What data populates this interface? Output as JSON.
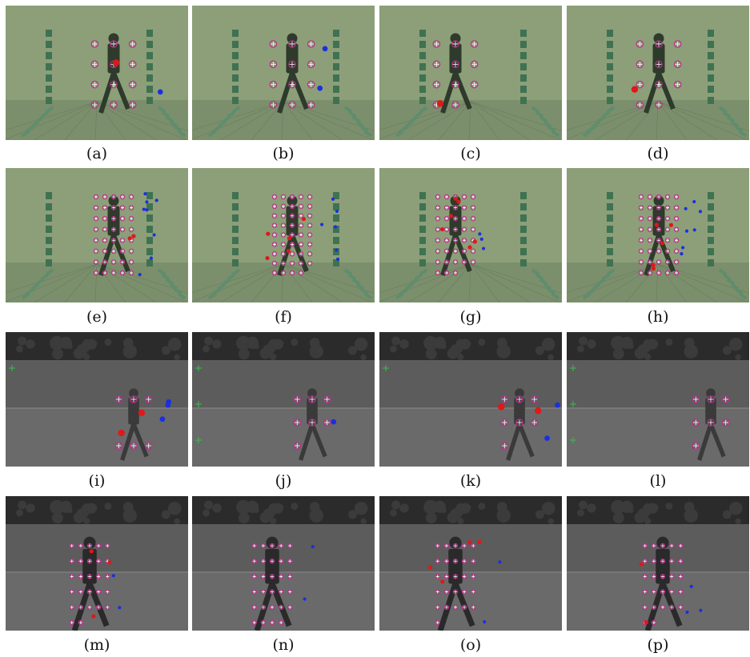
{
  "panels": [
    {
      "label": "(a)",
      "scene": "indoor",
      "subject": "walker-right",
      "markers": {
        "matched": 12,
        "missed": 1,
        "false": 1
      }
    },
    {
      "label": "(b)",
      "scene": "indoor",
      "subject": "walker-right",
      "markers": {
        "matched": 12,
        "missed": 0,
        "false": 2
      }
    },
    {
      "label": "(c)",
      "scene": "indoor",
      "subject": "walker-right",
      "markers": {
        "matched": 11,
        "missed": 1,
        "false": 0
      }
    },
    {
      "label": "(d)",
      "scene": "indoor",
      "subject": "walker-right",
      "markers": {
        "matched": 11,
        "missed": 1,
        "false": 0
      }
    },
    {
      "label": "(e)",
      "scene": "indoor",
      "subject": "walker-right",
      "markers": {
        "matched": 40,
        "missed": 2,
        "false": 8
      }
    },
    {
      "label": "(f)",
      "scene": "indoor",
      "subject": "walker-right",
      "markers": {
        "matched": 44,
        "missed": 5,
        "false": 6
      }
    },
    {
      "label": "(g)",
      "scene": "indoor",
      "subject": "walker-right",
      "markers": {
        "matched": 38,
        "missed": 6,
        "false": 3
      }
    },
    {
      "label": "(h)",
      "scene": "indoor",
      "subject": "walker-right",
      "markers": {
        "matched": 40,
        "missed": 5,
        "false": 7
      }
    },
    {
      "label": "(i)",
      "scene": "thermal",
      "subject": "walker-small",
      "markers": {
        "matched": 6,
        "missed": 2,
        "false": 3,
        "green": 1
      }
    },
    {
      "label": "(j)",
      "scene": "thermal",
      "subject": "walker-small",
      "markers": {
        "matched": 7,
        "missed": 0,
        "false": 1,
        "green": 3
      }
    },
    {
      "label": "(k)",
      "scene": "thermal",
      "subject": "walker-small",
      "markers": {
        "matched": 7,
        "missed": 2,
        "false": 2,
        "green": 1
      }
    },
    {
      "label": "(l)",
      "scene": "thermal",
      "subject": "walker-small",
      "markers": {
        "matched": 7,
        "missed": 0,
        "false": 0,
        "green": 3
      }
    },
    {
      "label": "(m)",
      "scene": "thermal",
      "subject": "walker-large",
      "markers": {
        "matched": 27,
        "missed": 3,
        "false": 2
      }
    },
    {
      "label": "(n)",
      "scene": "thermal",
      "subject": "walker-large",
      "markers": {
        "matched": 29,
        "missed": 0,
        "false": 2
      }
    },
    {
      "label": "(o)",
      "scene": "thermal",
      "subject": "walker-large",
      "markers": {
        "matched": 26,
        "missed": 4,
        "false": 2
      }
    },
    {
      "label": "(p)",
      "scene": "thermal",
      "subject": "walker-large",
      "markers": {
        "matched": 27,
        "missed": 2,
        "false": 3
      }
    }
  ],
  "colors": {
    "indoor_bg": "#8c9f79",
    "indoor_floor": "#7b8f6c",
    "indoor_pillar": "#3f7251",
    "thermal_sky": "#2b2b2b",
    "thermal_wall": "#5c5c5c",
    "thermal_road": "#6a6a6a",
    "marker_matched_ring": "#c02a8c",
    "marker_matched_cross": "#ffffff",
    "marker_missed": "#e01818",
    "marker_false": "#1a2fe0",
    "marker_green": "#33c24a"
  }
}
